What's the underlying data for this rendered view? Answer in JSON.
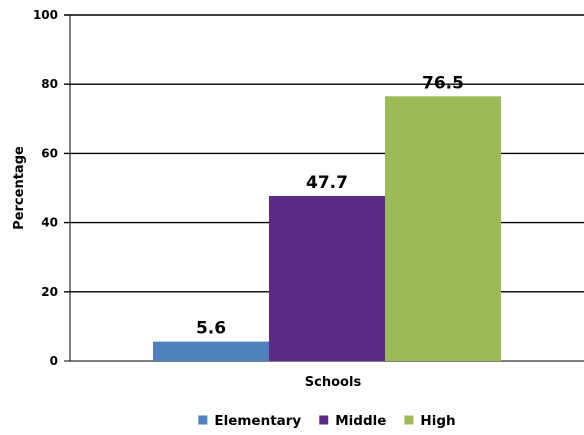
{
  "chart_data": {
    "type": "bar",
    "categories": [
      "Schools"
    ],
    "series": [
      {
        "name": "Elementary",
        "values": [
          5.6
        ],
        "color": "#4F81BD",
        "label": "5.6"
      },
      {
        "name": "Middle",
        "values": [
          47.7
        ],
        "color": "#5B2C86",
        "label": "47.7"
      },
      {
        "name": "High",
        "values": [
          76.5
        ],
        "color": "#9BBB59",
        "label": "76.5"
      }
    ],
    "title": "",
    "xlabel": "Schools",
    "ylabel": "Percentage",
    "ylim": [
      0,
      100
    ],
    "yticks": [
      0,
      20,
      40,
      60,
      80,
      100
    ],
    "ytick_labels": [
      "0",
      "20",
      "40",
      "60",
      "80",
      "100"
    ],
    "grid": true,
    "legend_position": "bottom"
  }
}
